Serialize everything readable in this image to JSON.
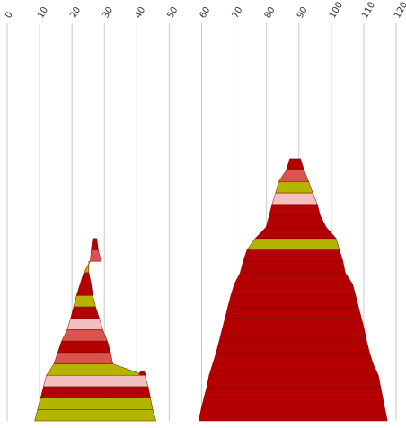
{
  "chart_data": {
    "type": "stacked-area-funnel",
    "x_axis": {
      "ticks": [
        0,
        10,
        20,
        30,
        40,
        50,
        60,
        70,
        80,
        90,
        100,
        110,
        120
      ],
      "tick_labels": [
        "0",
        "10",
        "20",
        "30",
        "40",
        "50",
        "60",
        "70",
        "80",
        "90",
        "100",
        "110",
        "120"
      ],
      "range": [
        0,
        120
      ],
      "position": "top",
      "label_rotation_deg": -60
    },
    "grid": true,
    "legend": "none",
    "colors": {
      "dark_red": "#b30000",
      "coral": "#d9534f",
      "olive": "#b3b300",
      "pink": "#f2c0c0"
    },
    "shapes": [
      {
        "name": "left-stack",
        "bands": [
          {
            "color": "olive",
            "left": 8.5,
            "right": 45.9
          },
          {
            "color": "olive",
            "left": 9.4,
            "right": 44.9
          },
          {
            "color": "dark_red",
            "left": 10.3,
            "right": 44.2
          },
          {
            "color": "pink",
            "left": 11.2,
            "right": 43.5
          },
          {
            "color": "olive",
            "left": 12.1,
            "right": 42.4
          },
          {
            "color": "coral",
            "left": 14.4,
            "right": 32.6
          },
          {
            "color": "dark_red",
            "left": 15.6,
            "right": 31.9
          },
          {
            "color": "coral",
            "left": 16.8,
            "right": 30.9
          },
          {
            "color": "pink",
            "left": 18.5,
            "right": 29.5
          },
          {
            "color": "dark_red",
            "left": 19.6,
            "right": 28.4
          },
          {
            "color": "olive",
            "left": 20.5,
            "right": 27.3
          },
          {
            "color": "dark_red",
            "left": 21.4,
            "right": 26.4
          },
          {
            "color": "dark_red",
            "left": 22.5,
            "right": 25.9
          },
          {
            "color": "olive",
            "left": 23.6,
            "right": 25.2
          },
          {
            "color": "coral",
            "left": 25.6,
            "right": 29.0
          },
          {
            "color": "dark_red",
            "left": 25.9,
            "right": 28.1
          }
        ],
        "bumps": [
          {
            "color": "dark_red",
            "left": 40.6,
            "right": 42.8,
            "band": 4
          }
        ]
      },
      {
        "name": "right-stack",
        "bands": [
          {
            "color": "dark_red",
            "left": 59.1,
            "right": 117.3
          },
          {
            "color": "dark_red",
            "left": 59.8,
            "right": 116.6
          },
          {
            "color": "dark_red",
            "left": 60.7,
            "right": 115.9
          },
          {
            "color": "dark_red",
            "left": 61.6,
            "right": 115.2
          },
          {
            "color": "dark_red",
            "left": 62.3,
            "right": 114.5
          },
          {
            "color": "dark_red",
            "left": 63.4,
            "right": 112.9
          },
          {
            "color": "dark_red",
            "left": 64.5,
            "right": 111.8
          },
          {
            "color": "dark_red",
            "left": 65.4,
            "right": 110.9
          },
          {
            "color": "dark_red",
            "left": 66.3,
            "right": 110.2
          },
          {
            "color": "dark_red",
            "left": 67.2,
            "right": 109.3
          },
          {
            "color": "dark_red",
            "left": 68.1,
            "right": 108.4
          },
          {
            "color": "dark_red",
            "left": 69.0,
            "right": 107.5
          },
          {
            "color": "dark_red",
            "left": 70.1,
            "right": 106.6
          },
          {
            "color": "dark_red",
            "left": 71.9,
            "right": 104.3
          },
          {
            "color": "dark_red",
            "left": 72.8,
            "right": 103.6
          },
          {
            "color": "olive",
            "left": 74.0,
            "right": 102.5
          },
          {
            "color": "dark_red",
            "left": 76.5,
            "right": 101.5
          },
          {
            "color": "dark_red",
            "left": 79.9,
            "right": 98.4
          },
          {
            "color": "dark_red",
            "left": 80.8,
            "right": 96.6
          },
          {
            "color": "pink",
            "left": 81.7,
            "right": 95.7
          },
          {
            "color": "olive",
            "left": 82.8,
            "right": 94.3
          },
          {
            "color": "coral",
            "left": 83.8,
            "right": 93.0
          },
          {
            "color": "dark_red",
            "left": 86.1,
            "right": 91.6
          }
        ]
      }
    ]
  }
}
